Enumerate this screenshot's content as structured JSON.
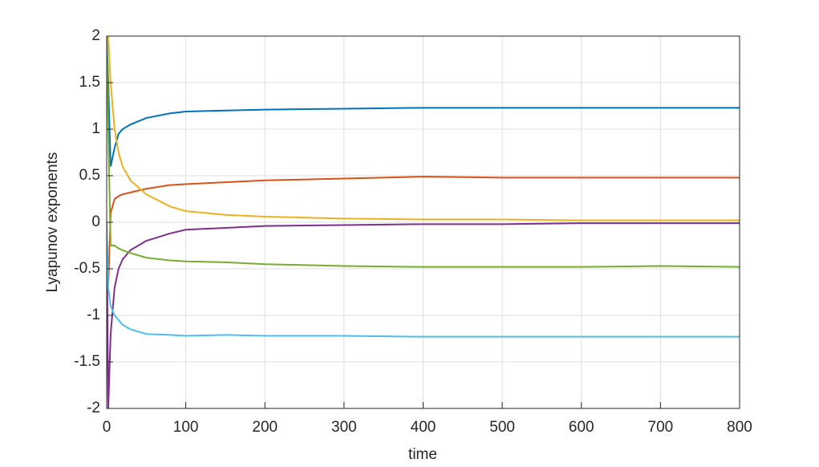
{
  "chart_data": {
    "type": "line",
    "xlabel": "time",
    "ylabel": "Lyapunov exponents",
    "x": [
      0,
      2,
      5,
      10,
      15,
      20,
      30,
      50,
      80,
      100,
      150,
      200,
      300,
      400,
      500,
      600,
      700,
      800
    ],
    "series": [
      {
        "color": "#0072bd",
        "values": [
          2,
          1.5,
          0.6,
          0.8,
          0.95,
          1.0,
          1.05,
          1.12,
          1.17,
          1.19,
          1.2,
          1.21,
          1.22,
          1.23,
          1.23,
          1.23,
          1.23,
          1.23
        ]
      },
      {
        "color": "#d95319",
        "values": [
          0,
          -0.7,
          0.1,
          0.25,
          0.28,
          0.3,
          0.32,
          0.36,
          0.4,
          0.41,
          0.43,
          0.45,
          0.47,
          0.49,
          0.48,
          0.48,
          0.48,
          0.48
        ]
      },
      {
        "color": "#edb120",
        "values": [
          2,
          2,
          1.5,
          1.0,
          0.75,
          0.6,
          0.45,
          0.3,
          0.17,
          0.12,
          0.08,
          0.06,
          0.04,
          0.03,
          0.03,
          0.02,
          0.02,
          0.02
        ]
      },
      {
        "color": "#7e2f8e",
        "values": [
          0,
          -2,
          -1.2,
          -0.7,
          -0.5,
          -0.4,
          -0.3,
          -0.2,
          -0.12,
          -0.08,
          -0.06,
          -0.04,
          -0.03,
          -0.02,
          -0.02,
          -0.01,
          -0.01,
          -0.01
        ]
      },
      {
        "color": "#77ac30",
        "values": [
          2,
          1,
          -0.25,
          -0.25,
          -0.28,
          -0.3,
          -0.33,
          -0.38,
          -0.41,
          -0.42,
          -0.43,
          -0.45,
          -0.47,
          -0.48,
          -0.48,
          -0.48,
          -0.47,
          -0.48
        ]
      },
      {
        "color": "#4dbeee",
        "values": [
          0,
          -0.7,
          -0.9,
          -1.0,
          -1.05,
          -1.1,
          -1.15,
          -1.2,
          -1.21,
          -1.22,
          -1.21,
          -1.22,
          -1.22,
          -1.23,
          -1.23,
          -1.23,
          -1.23,
          -1.23
        ]
      }
    ],
    "xlim": [
      0,
      800
    ],
    "xticks": [
      0,
      100,
      200,
      300,
      400,
      500,
      600,
      700,
      800
    ],
    "ylim": [
      -2,
      2
    ],
    "yticks": [
      -2,
      -1.5,
      -1,
      -0.5,
      0,
      0.5,
      1,
      1.5,
      2
    ],
    "grid": true
  }
}
